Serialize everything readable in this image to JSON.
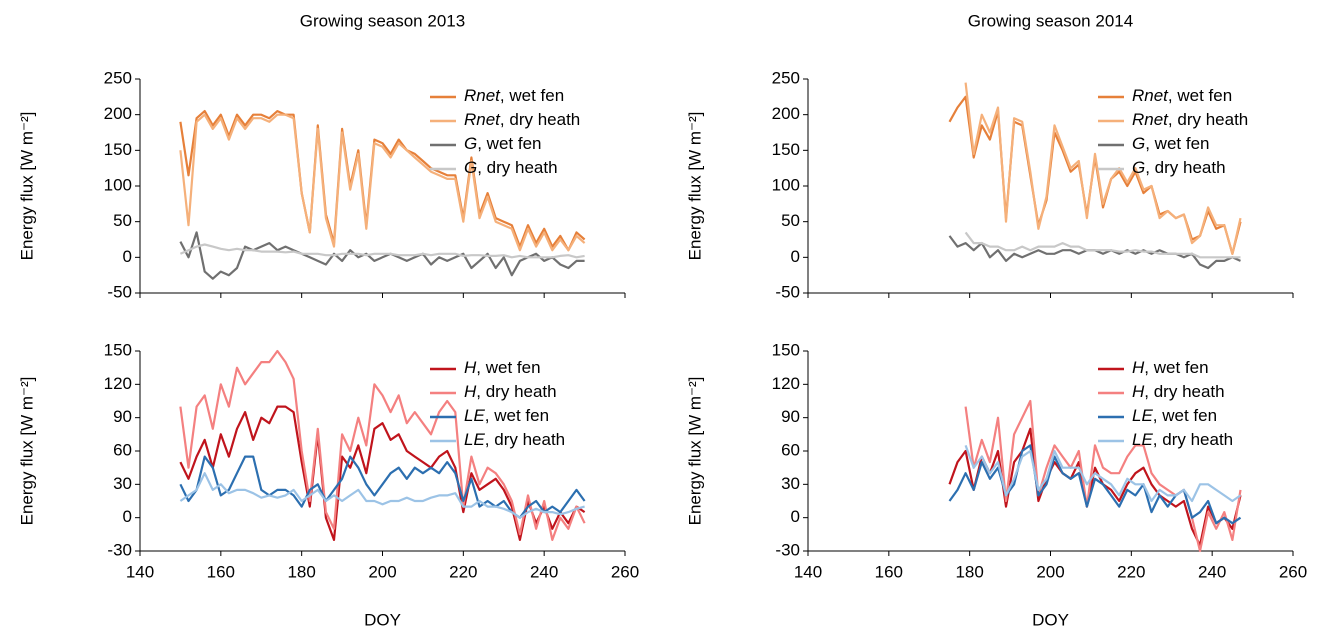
{
  "chart_data": [
    {
      "type": "line",
      "title": "Growing season 2013",
      "ylabel": "Energy flux [W m⁻²]",
      "legend": "upper right",
      "xlim": [
        140,
        260
      ],
      "xticks": [
        140,
        160,
        180,
        200,
        220,
        240,
        260
      ],
      "ylim": [
        -50,
        250
      ],
      "yticks": [
        -50,
        0,
        50,
        100,
        150,
        200,
        250
      ],
      "x": [
        150,
        152,
        154,
        156,
        158,
        160,
        162,
        164,
        166,
        168,
        170,
        172,
        174,
        176,
        178,
        180,
        182,
        184,
        186,
        188,
        190,
        192,
        194,
        196,
        198,
        200,
        202,
        204,
        206,
        208,
        210,
        212,
        214,
        216,
        218,
        220,
        222,
        224,
        226,
        228,
        230,
        232,
        234,
        236,
        238,
        240,
        242,
        244,
        246,
        248,
        250
      ],
      "series": [
        {
          "name": "Rnet, wet fen",
          "color": "#e6803a",
          "values": [
            190,
            115,
            195,
            205,
            185,
            200,
            170,
            200,
            185,
            200,
            200,
            195,
            205,
            200,
            200,
            90,
            35,
            185,
            60,
            20,
            180,
            100,
            150,
            45,
            165,
            160,
            145,
            165,
            150,
            145,
            135,
            125,
            120,
            115,
            115,
            55,
            140,
            60,
            90,
            55,
            50,
            45,
            15,
            45,
            20,
            40,
            15,
            30,
            10,
            35,
            25
          ]
        },
        {
          "name": "Rnet, dry heath",
          "color": "#f5b07a",
          "values": [
            150,
            45,
            190,
            200,
            180,
            195,
            165,
            195,
            180,
            195,
            195,
            190,
            200,
            200,
            195,
            90,
            35,
            180,
            55,
            15,
            175,
            95,
            145,
            40,
            160,
            155,
            140,
            160,
            150,
            140,
            130,
            120,
            115,
            110,
            110,
            50,
            135,
            55,
            85,
            50,
            45,
            40,
            10,
            40,
            15,
            35,
            10,
            25,
            10,
            30,
            20
          ]
        },
        {
          "name": "G, wet fen",
          "color": "#707070",
          "values": [
            22,
            0,
            35,
            -20,
            -30,
            -20,
            -25,
            -15,
            15,
            10,
            15,
            20,
            10,
            15,
            10,
            5,
            0,
            -5,
            -10,
            5,
            -5,
            10,
            0,
            5,
            -5,
            0,
            5,
            0,
            -5,
            0,
            5,
            -10,
            0,
            -5,
            0,
            5,
            -15,
            -5,
            5,
            -15,
            0,
            -25,
            -5,
            0,
            5,
            -5,
            0,
            -10,
            -15,
            -5,
            -5
          ]
        },
        {
          "name": "G, dry heath",
          "color": "#c8c8c8",
          "values": [
            5,
            10,
            15,
            18,
            15,
            12,
            10,
            12,
            10,
            10,
            8,
            8,
            8,
            7,
            8,
            5,
            5,
            5,
            3,
            3,
            5,
            5,
            5,
            3,
            5,
            5,
            5,
            3,
            3,
            3,
            5,
            3,
            5,
            5,
            5,
            2,
            3,
            3,
            2,
            2,
            3,
            0,
            2,
            0,
            0,
            0,
            0,
            2,
            3,
            0,
            2
          ]
        }
      ]
    },
    {
      "type": "line",
      "title": "Growing season 2014",
      "ylabel": "Energy flux [W m⁻²]",
      "legend": "upper right",
      "xlim": [
        140,
        260
      ],
      "xticks": [
        140,
        160,
        180,
        200,
        220,
        240,
        260
      ],
      "ylim": [
        -50,
        250
      ],
      "yticks": [
        -50,
        0,
        50,
        100,
        150,
        200,
        250
      ],
      "x": [
        175,
        177,
        179,
        181,
        183,
        185,
        187,
        189,
        191,
        193,
        195,
        197,
        199,
        201,
        203,
        205,
        207,
        209,
        211,
        213,
        215,
        217,
        219,
        221,
        223,
        225,
        227,
        229,
        231,
        233,
        235,
        237,
        239,
        241,
        243,
        245,
        247
      ],
      "series": [
        {
          "name": "Rnet, wet fen",
          "color": "#e6803a",
          "values": [
            190,
            210,
            225,
            140,
            185,
            165,
            205,
            55,
            190,
            185,
            115,
            45,
            80,
            175,
            150,
            120,
            130,
            60,
            140,
            70,
            110,
            120,
            100,
            120,
            90,
            100,
            60,
            65,
            55,
            60,
            25,
            30,
            65,
            40,
            45,
            5,
            50
          ]
        },
        {
          "name": "Rnet, dry heath",
          "color": "#f5b07a",
          "values": [
            null,
            null,
            245,
            145,
            200,
            175,
            210,
            50,
            195,
            190,
            120,
            40,
            85,
            185,
            155,
            125,
            135,
            55,
            145,
            75,
            110,
            125,
            105,
            125,
            95,
            100,
            55,
            65,
            55,
            60,
            20,
            30,
            70,
            45,
            45,
            5,
            55
          ]
        },
        {
          "name": "G, wet fen",
          "color": "#707070",
          "values": [
            30,
            15,
            20,
            10,
            20,
            0,
            10,
            -5,
            5,
            0,
            5,
            10,
            5,
            5,
            10,
            10,
            5,
            10,
            10,
            5,
            10,
            5,
            10,
            5,
            10,
            5,
            10,
            5,
            5,
            0,
            5,
            -10,
            -15,
            -5,
            -5,
            0,
            -5
          ]
        },
        {
          "name": "G, dry heath",
          "color": "#c8c8c8",
          "values": [
            null,
            null,
            35,
            20,
            20,
            15,
            15,
            10,
            10,
            15,
            10,
            15,
            15,
            15,
            20,
            15,
            15,
            10,
            10,
            10,
            10,
            8,
            8,
            10,
            8,
            8,
            5,
            5,
            5,
            5,
            5,
            0,
            0,
            0,
            0,
            0,
            0
          ]
        }
      ]
    },
    {
      "type": "line",
      "ylabel": "Energy flux [W m⁻²]",
      "xlabel": "DOY",
      "legend": "upper right",
      "xlim": [
        140,
        260
      ],
      "xticks": [
        140,
        160,
        180,
        200,
        220,
        240,
        260
      ],
      "ylim": [
        -30,
        150
      ],
      "yticks": [
        -30,
        0,
        30,
        60,
        90,
        120,
        150
      ],
      "x": [
        150,
        152,
        154,
        156,
        158,
        160,
        162,
        164,
        166,
        168,
        170,
        172,
        174,
        176,
        178,
        180,
        182,
        184,
        186,
        188,
        190,
        192,
        194,
        196,
        198,
        200,
        202,
        204,
        206,
        208,
        210,
        212,
        214,
        216,
        218,
        220,
        222,
        224,
        226,
        228,
        230,
        232,
        234,
        236,
        238,
        240,
        242,
        244,
        246,
        248,
        250
      ],
      "series": [
        {
          "name": "H, wet fen",
          "color": "#c0141c",
          "values": [
            50,
            35,
            55,
            70,
            45,
            75,
            55,
            80,
            95,
            70,
            90,
            85,
            100,
            100,
            95,
            50,
            10,
            75,
            0,
            -20,
            55,
            45,
            65,
            40,
            80,
            85,
            70,
            75,
            60,
            55,
            50,
            45,
            55,
            60,
            45,
            5,
            40,
            25,
            30,
            35,
            25,
            10,
            -20,
            15,
            -5,
            10,
            -10,
            5,
            -5,
            10,
            5
          ]
        },
        {
          "name": "H, dry heath",
          "color": "#f48080",
          "values": [
            100,
            45,
            100,
            110,
            80,
            120,
            100,
            135,
            120,
            130,
            140,
            140,
            150,
            140,
            125,
            60,
            15,
            80,
            5,
            -10,
            75,
            60,
            90,
            65,
            120,
            110,
            95,
            110,
            85,
            95,
            85,
            75,
            95,
            105,
            95,
            10,
            55,
            30,
            45,
            40,
            30,
            15,
            -15,
            20,
            -10,
            15,
            -20,
            0,
            -10,
            10,
            -5
          ]
        },
        {
          "name": "LE, wet fen",
          "color": "#2c6fb0",
          "values": [
            30,
            15,
            25,
            55,
            45,
            20,
            25,
            40,
            55,
            55,
            25,
            20,
            25,
            25,
            20,
            10,
            25,
            30,
            15,
            25,
            35,
            55,
            45,
            30,
            20,
            30,
            40,
            45,
            35,
            45,
            40,
            45,
            40,
            50,
            40,
            15,
            35,
            10,
            15,
            10,
            15,
            5,
            0,
            10,
            15,
            5,
            10,
            5,
            15,
            25,
            15
          ]
        },
        {
          "name": "LE, dry heath",
          "color": "#9cc3e6",
          "values": [
            15,
            20,
            25,
            40,
            25,
            30,
            22,
            25,
            25,
            22,
            18,
            20,
            18,
            20,
            25,
            15,
            20,
            25,
            15,
            20,
            15,
            20,
            25,
            15,
            15,
            12,
            15,
            15,
            18,
            15,
            15,
            18,
            20,
            20,
            22,
            10,
            10,
            15,
            10,
            10,
            8,
            5,
            0,
            5,
            8,
            5,
            5,
            3,
            5,
            8,
            10
          ]
        }
      ]
    },
    {
      "type": "line",
      "ylabel": "Energy flux [W m⁻²]",
      "xlabel": "DOY",
      "legend": "upper right",
      "xlim": [
        140,
        260
      ],
      "xticks": [
        140,
        160,
        180,
        200,
        220,
        240,
        260
      ],
      "ylim": [
        -30,
        150
      ],
      "yticks": [
        -30,
        0,
        30,
        60,
        90,
        120,
        150
      ],
      "x": [
        175,
        177,
        179,
        181,
        183,
        185,
        187,
        189,
        191,
        193,
        195,
        197,
        199,
        201,
        203,
        205,
        207,
        209,
        211,
        213,
        215,
        217,
        219,
        221,
        223,
        225,
        227,
        229,
        231,
        233,
        235,
        237,
        239,
        241,
        243,
        245,
        247
      ],
      "series": [
        {
          "name": "H, wet fen",
          "color": "#c0141c",
          "values": [
            30,
            50,
            60,
            25,
            55,
            40,
            60,
            10,
            50,
            60,
            80,
            15,
            35,
            50,
            40,
            35,
            50,
            10,
            45,
            30,
            25,
            15,
            30,
            40,
            45,
            30,
            20,
            15,
            10,
            15,
            -10,
            -25,
            10,
            -5,
            0,
            -10,
            20
          ]
        },
        {
          "name": "H, dry heath",
          "color": "#f48080",
          "values": [
            null,
            null,
            100,
            45,
            70,
            50,
            90,
            15,
            75,
            90,
            105,
            20,
            45,
            65,
            55,
            45,
            60,
            10,
            65,
            45,
            40,
            40,
            55,
            65,
            65,
            40,
            30,
            25,
            20,
            25,
            0,
            -30,
            5,
            -10,
            5,
            -20,
            25
          ]
        },
        {
          "name": "LE, wet fen",
          "color": "#2c6fb0",
          "values": [
            15,
            25,
            40,
            25,
            50,
            35,
            45,
            20,
            30,
            60,
            65,
            20,
            30,
            55,
            40,
            35,
            40,
            10,
            35,
            30,
            20,
            10,
            25,
            20,
            30,
            5,
            20,
            10,
            20,
            25,
            0,
            5,
            15,
            -5,
            0,
            -5,
            0
          ]
        },
        {
          "name": "LE, dry heath",
          "color": "#9cc3e6",
          "values": [
            null,
            null,
            65,
            45,
            55,
            40,
            50,
            20,
            35,
            55,
            60,
            25,
            35,
            60,
            45,
            45,
            45,
            30,
            40,
            35,
            30,
            20,
            35,
            30,
            30,
            15,
            25,
            20,
            20,
            25,
            15,
            30,
            30,
            25,
            20,
            15,
            20
          ]
        }
      ]
    }
  ]
}
